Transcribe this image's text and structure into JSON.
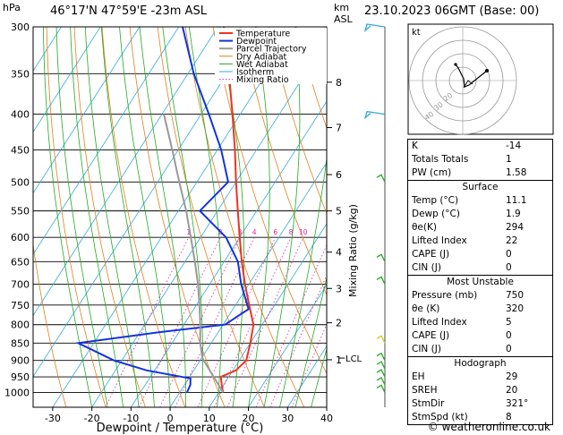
{
  "header": {
    "location": "46°17'N  47°59'E  -23m  ASL",
    "datetime": "23.10.2023  06GMT  (Base: 00)",
    "hpa_label": "hPa",
    "km_label": "km\nASL"
  },
  "chart_data": {
    "type": "line",
    "xlabel": "Dewpoint / Temperature (°C)",
    "ylabel_right": "Mixing Ratio (g/kg)",
    "pressure_ticks": [
      300,
      350,
      400,
      450,
      500,
      550,
      600,
      650,
      700,
      750,
      800,
      850,
      900,
      950,
      1000
    ],
    "temp_ticks": [
      -30,
      -20,
      -10,
      0,
      10,
      20,
      30,
      40
    ],
    "xlim": [
      -35,
      40
    ],
    "ylim_hpa": [
      1050,
      300
    ],
    "km_ticks": [
      {
        "km": "1",
        "p": 898
      },
      {
        "km": "2",
        "p": 795
      },
      {
        "km": "3",
        "p": 710
      },
      {
        "km": "4",
        "p": 630
      },
      {
        "km": "5",
        "p": 550
      },
      {
        "km": "6",
        "p": 488
      },
      {
        "km": "7",
        "p": 418
      },
      {
        "km": "8",
        "p": 360
      }
    ],
    "lcl": {
      "label": "LCL",
      "p": 893
    },
    "mixing_ratio_labels": [
      "1",
      "2",
      "3",
      "4",
      "6",
      "8",
      "10",
      "16",
      "20",
      "28"
    ],
    "legend": [
      "Temperature",
      "Dewpoint",
      "Parcel Trajectory",
      "Dry Adiabat",
      "Wet Adiabat",
      "Isotherm",
      "Mixing Ratio"
    ],
    "colors": {
      "temperature": "#ee3322",
      "dewpoint": "#1133dd",
      "parcel": "#999999",
      "dry_adiabat": "#e08020",
      "wet_adiabat": "#22aa22",
      "isotherm": "#33aadd",
      "mixing_ratio": "#dd22aa"
    },
    "series": [
      {
        "name": "Temperature",
        "points": [
          {
            "p": 1000,
            "t": 11.1
          },
          {
            "p": 975,
            "t": 9.5
          },
          {
            "p": 950,
            "t": 8.0
          },
          {
            "p": 930,
            "t": 10.8
          },
          {
            "p": 900,
            "t": 11.8
          },
          {
            "p": 850,
            "t": 10.0
          },
          {
            "p": 800,
            "t": 7.8
          },
          {
            "p": 750,
            "t": 3.5
          },
          {
            "p": 700,
            "t": -1.0
          },
          {
            "p": 650,
            "t": -5.5
          },
          {
            "p": 600,
            "t": -10.0
          },
          {
            "p": 550,
            "t": -14.8
          },
          {
            "p": 500,
            "t": -20.0
          },
          {
            "p": 450,
            "t": -25.5
          },
          {
            "p": 400,
            "t": -32.0
          },
          {
            "p": 350,
            "t": -39.5
          },
          {
            "p": 300,
            "t": -48.5
          }
        ]
      },
      {
        "name": "Dewpoint",
        "points": [
          {
            "p": 1000,
            "t": 1.9
          },
          {
            "p": 975,
            "t": 1.5
          },
          {
            "p": 955,
            "t": 0.5
          },
          {
            "p": 930,
            "t": -12.0
          },
          {
            "p": 900,
            "t": -22.0
          },
          {
            "p": 850,
            "t": -34.0
          },
          {
            "p": 820,
            "t": -15.0
          },
          {
            "p": 800,
            "t": 0.5
          },
          {
            "p": 760,
            "t": 4.0
          },
          {
            "p": 700,
            "t": -2.0
          },
          {
            "p": 650,
            "t": -6.5
          },
          {
            "p": 600,
            "t": -13.5
          },
          {
            "p": 550,
            "t": -24.5
          },
          {
            "p": 500,
            "t": -22.0
          },
          {
            "p": 450,
            "t": -29.0
          },
          {
            "p": 400,
            "t": -38.0
          },
          {
            "p": 350,
            "t": -48.5
          },
          {
            "p": 300,
            "t": -59.0
          }
        ]
      },
      {
        "name": "Parcel Trajectory",
        "points": [
          {
            "p": 1000,
            "t": 11.1
          },
          {
            "p": 893,
            "t": 0.2
          },
          {
            "p": 850,
            "t": -2.8
          },
          {
            "p": 800,
            "t": -5.8
          },
          {
            "p": 750,
            "t": -9.2
          },
          {
            "p": 700,
            "t": -13.0
          },
          {
            "p": 650,
            "t": -17.5
          },
          {
            "p": 600,
            "t": -22.5
          },
          {
            "p": 550,
            "t": -28.0
          },
          {
            "p": 500,
            "t": -34.5
          },
          {
            "p": 450,
            "t": -41.5
          },
          {
            "p": 400,
            "t": -49.5
          }
        ]
      }
    ]
  },
  "hodograph": {
    "label": "kt",
    "rings": [
      "20",
      "30",
      "40"
    ]
  },
  "indices": {
    "rows": [
      {
        "label": "K",
        "value": "-14"
      },
      {
        "label": "Totals Totals",
        "value": "1"
      },
      {
        "label": "PW (cm)",
        "value": "1.58"
      }
    ]
  },
  "surface": {
    "title": "Surface",
    "rows": [
      {
        "label": "Temp (°C)",
        "value": "11.1"
      },
      {
        "label": "Dewp (°C)",
        "value": "1.9"
      },
      {
        "label": "θe(K)",
        "value": "294"
      },
      {
        "label": "Lifted Index",
        "value": "22"
      },
      {
        "label": "CAPE (J)",
        "value": "0"
      },
      {
        "label": "CIN (J)",
        "value": "0"
      }
    ]
  },
  "most_unstable": {
    "title": "Most Unstable",
    "rows": [
      {
        "label": "Pressure (mb)",
        "value": "750"
      },
      {
        "label": "θe (K)",
        "value": "320"
      },
      {
        "label": "Lifted Index",
        "value": "5"
      },
      {
        "label": "CAPE (J)",
        "value": "0"
      },
      {
        "label": "CIN (J)",
        "value": "0"
      }
    ]
  },
  "hodograph_table": {
    "title": "Hodograph",
    "rows": [
      {
        "label": "EH",
        "value": "29"
      },
      {
        "label": "SREH",
        "value": "20"
      },
      {
        "label": "StmDir",
        "value": "321°"
      },
      {
        "label": "StmSpd (kt)",
        "value": "8"
      }
    ]
  },
  "credit": "© weatheronline.co.uk"
}
